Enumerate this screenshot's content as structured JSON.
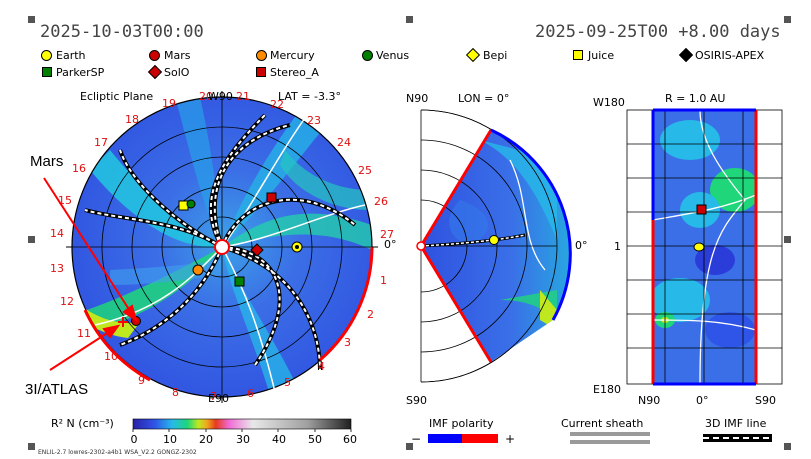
{
  "header": {
    "time_left": "2025-10-03T00:00",
    "time_right": "2025-09-25T00 +8.00 days"
  },
  "legend": {
    "items": [
      {
        "label": "Earth",
        "icon": "circle-icon",
        "color": "#ffff00"
      },
      {
        "label": "Mars",
        "icon": "circle-icon",
        "color": "#cc0000"
      },
      {
        "label": "Mercury",
        "icon": "circle-icon",
        "color": "#ff8c00"
      },
      {
        "label": "Venus",
        "icon": "circle-icon",
        "color": "#008000"
      },
      {
        "label": "Bepi",
        "icon": "diamond-icon",
        "color": "#ffff00"
      },
      {
        "label": "Juice",
        "icon": "square-icon",
        "color": "#ffff00"
      },
      {
        "label": "OSIRIS-APEX",
        "icon": "diamond-icon",
        "color": "#000000"
      },
      {
        "label": "ParkerSP",
        "icon": "square-icon",
        "color": "#008000"
      },
      {
        "label": "SolO",
        "icon": "diamond-icon",
        "color": "#cc0000"
      },
      {
        "label": "Stereo_A",
        "icon": "square-icon",
        "color": "#cc0000"
      }
    ]
  },
  "ecliptic": {
    "title": "Ecliptic Plane",
    "top_label": "W90",
    "bottom_label": "E90",
    "right_label": "0°",
    "lat_label": "LAT = -3.3°",
    "sector_numbers": [
      "1",
      "2",
      "3",
      "4",
      "5",
      "6",
      "7",
      "8",
      "9",
      "10",
      "11",
      "12",
      "13",
      "14",
      "15",
      "16",
      "17",
      "18",
      "19",
      "20",
      "21",
      "22",
      "23",
      "24",
      "25",
      "26",
      "27"
    ]
  },
  "meridional": {
    "top_label": "N90",
    "bottom_label": "S90",
    "lon_label": "LON = 0°",
    "right_label": "0°"
  },
  "radial": {
    "r_label": "R = 1.0 AU",
    "top_left_label": "W180",
    "bottom_left_label": "E180",
    "mid_left_label": "1",
    "bottom_n_label": "N90",
    "bottom_mid_label": "0°",
    "bottom_s_label": "S90"
  },
  "annotations": {
    "mars_label": "Mars",
    "atlas_label": "3I/ATLAS"
  },
  "colorbar": {
    "label": "R² N (cm⁻³)",
    "ticks": [
      "0",
      "10",
      "20",
      "30",
      "40",
      "50",
      "60"
    ],
    "stops": [
      "#2a1fa8",
      "#2f55e8",
      "#27b9e8",
      "#1fd67a",
      "#c0e81f",
      "#f0a51f",
      "#e83a1f",
      "#f06ad6",
      "#e8e8e8",
      "#a0a0a0",
      "#202020"
    ]
  },
  "imf": {
    "label": "IMF polarity",
    "minus": "−",
    "plus": "+",
    "neg_color": "#0000ff",
    "pos_color": "#ff0000"
  },
  "current_sheath": {
    "label": "Current sheath"
  },
  "imf_line": {
    "label": "3D IMF line"
  },
  "footer": {
    "model_info": "ENLIL-2.7 lowres-2302-a4b1 WSA_V2.2 GONGZ-2302"
  }
}
